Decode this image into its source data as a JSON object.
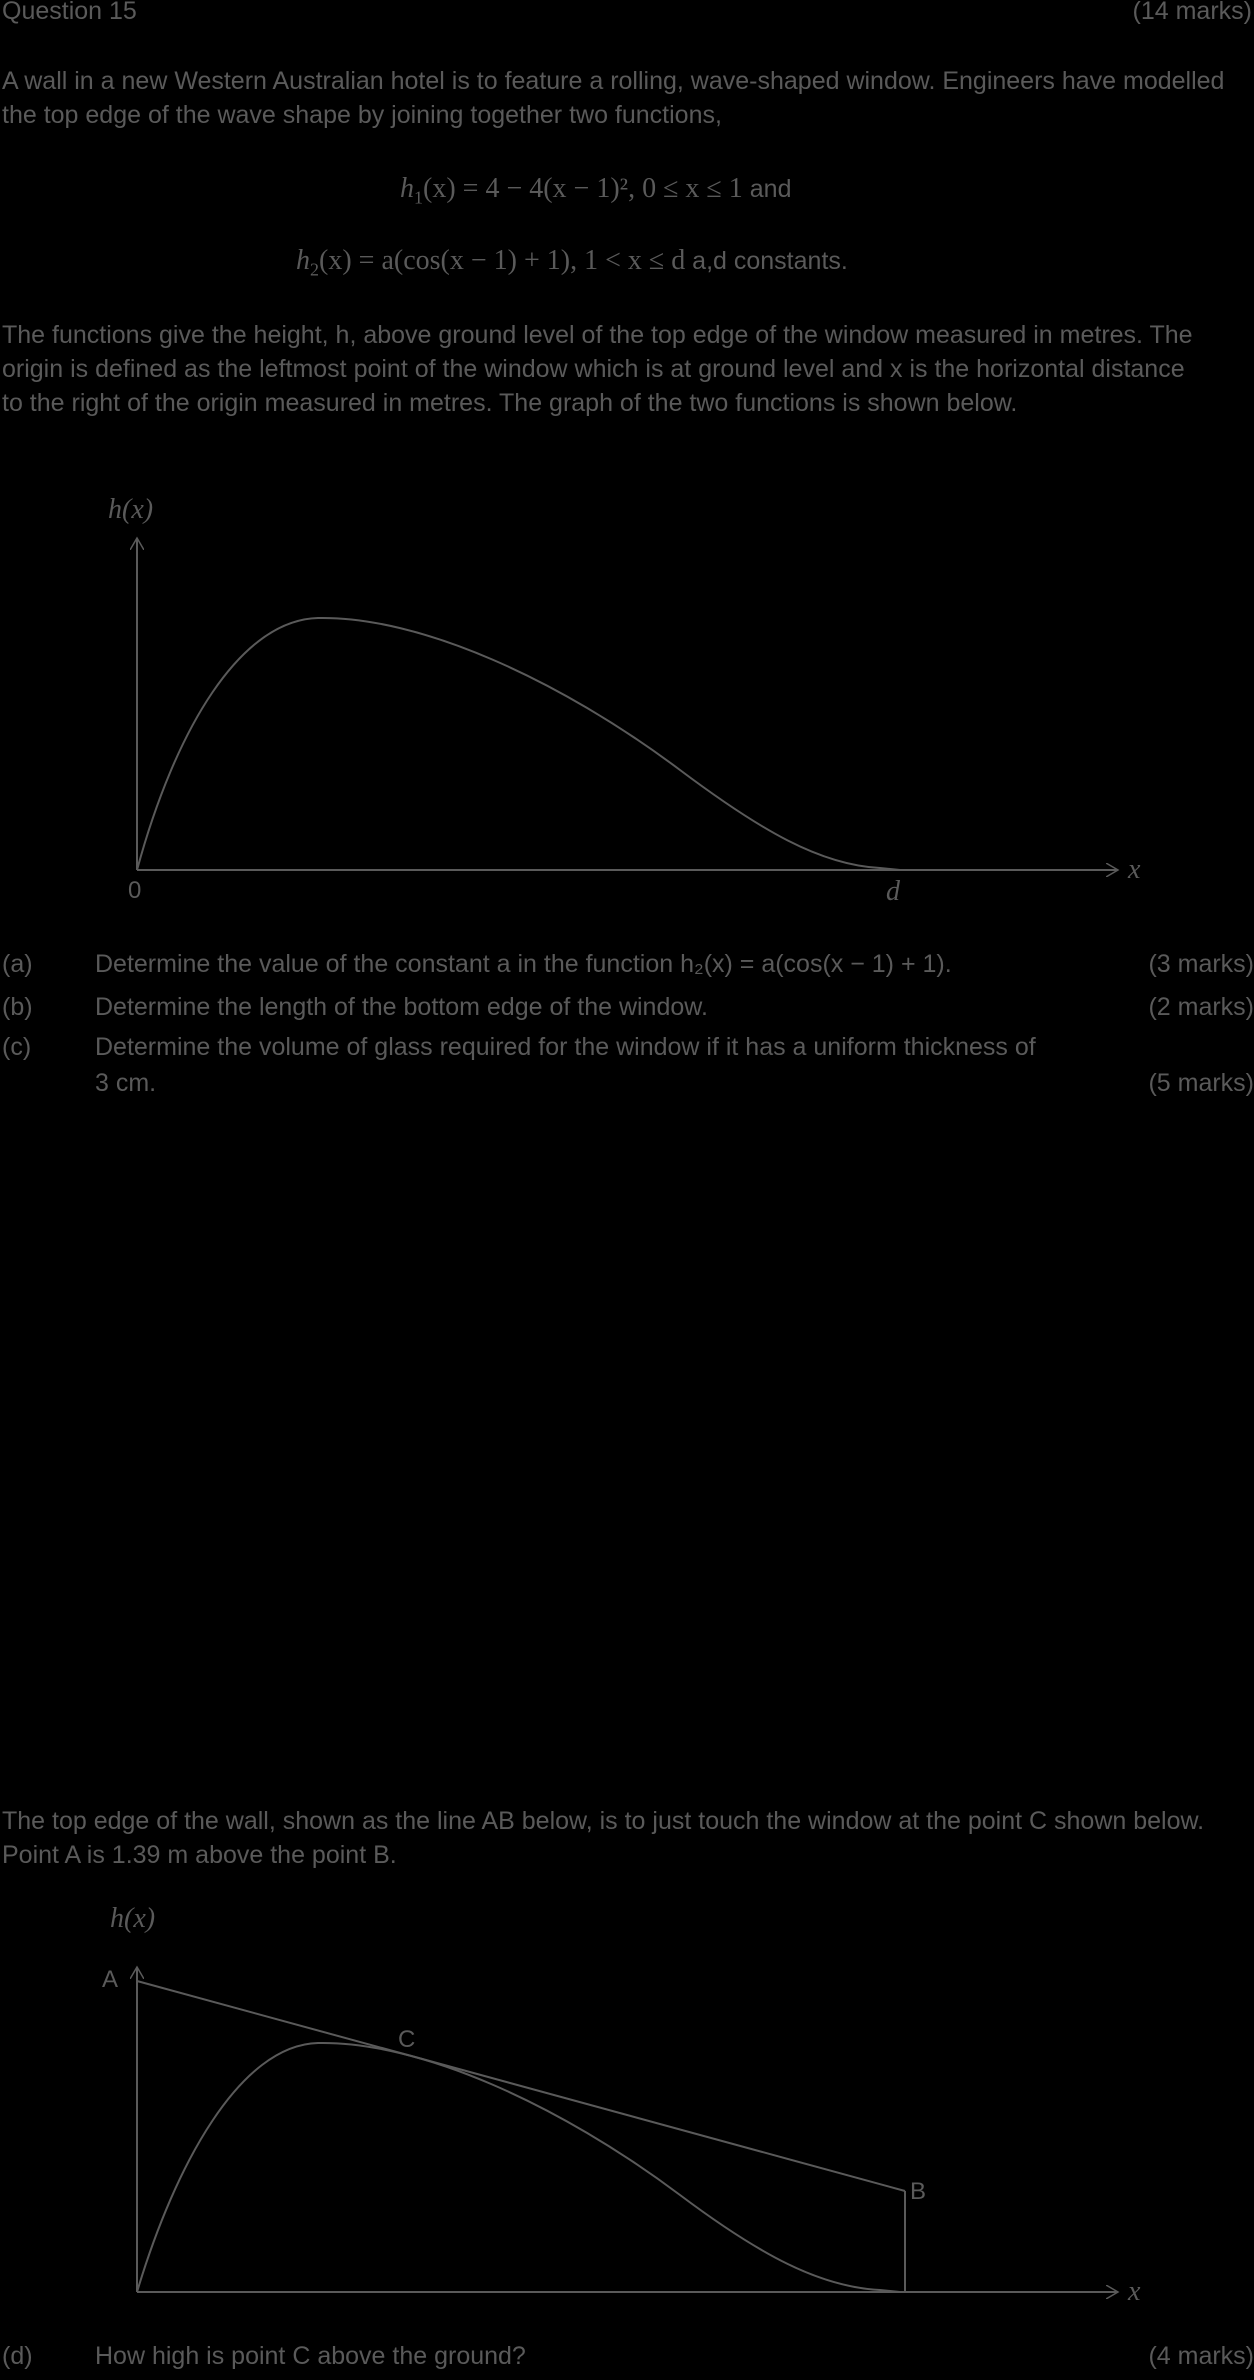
{
  "header": {
    "title": "Question 15",
    "marks": "(14 marks)"
  },
  "intro": "A wall in a new Western Australian hotel is to feature a rolling, wave-shaped window. Engineers have modelled the top edge of the wave shape by joining together two functions,",
  "eq1": {
    "lhs": "h",
    "sub": "1",
    "rhs": "(x) = 4 − 4(x − 1)²,   0 ≤ x ≤ 1",
    "suffix": " and"
  },
  "eq2": {
    "lhs": "h",
    "sub": "2",
    "rhs": "(x) = a(cos(x − 1) + 1),   1 < x ≤ d",
    "suffix": "   a,d constants."
  },
  "desc1": "The functions give the height, h, above ground level of the top edge of the window measured in metres. The origin is defined as the leftmost point of the window which is at ground level and x is the horizontal distance to the right of the origin measured in metres. The graph of the two functions is shown below.",
  "graph1": {
    "ylabel": "h(x)",
    "xlabel": "x",
    "origin": "0",
    "d": "d"
  },
  "parts": [
    {
      "letter": "(a)",
      "text": "Determine the value of the constant a in the function h₂(x) = a(cos(x − 1) + 1).",
      "marks": "(3 marks)"
    },
    {
      "letter": "(b)",
      "text": "Determine the length of the bottom edge of the window.",
      "marks": "(2 marks)"
    },
    {
      "letter": "(c)",
      "text": "Determine the volume of glass required for the window if it has a uniform thickness of",
      "text2": "3 cm.",
      "marks": "(5 marks)"
    }
  ],
  "desc2": "The top edge of the wall, shown as the line AB below, is to just touch the window at the point C shown below. Point A is 1.39 m above the point B.",
  "graph2": {
    "ylabel": "h(x)",
    "xlabel": "x",
    "A": "A",
    "B": "B",
    "C": "C"
  },
  "partd": {
    "letter": "(d)",
    "text": "How high is point C above the ground?",
    "marks": "(4 marks)"
  },
  "colors": {
    "background": "#000000",
    "ink": "#5a5a5a"
  }
}
